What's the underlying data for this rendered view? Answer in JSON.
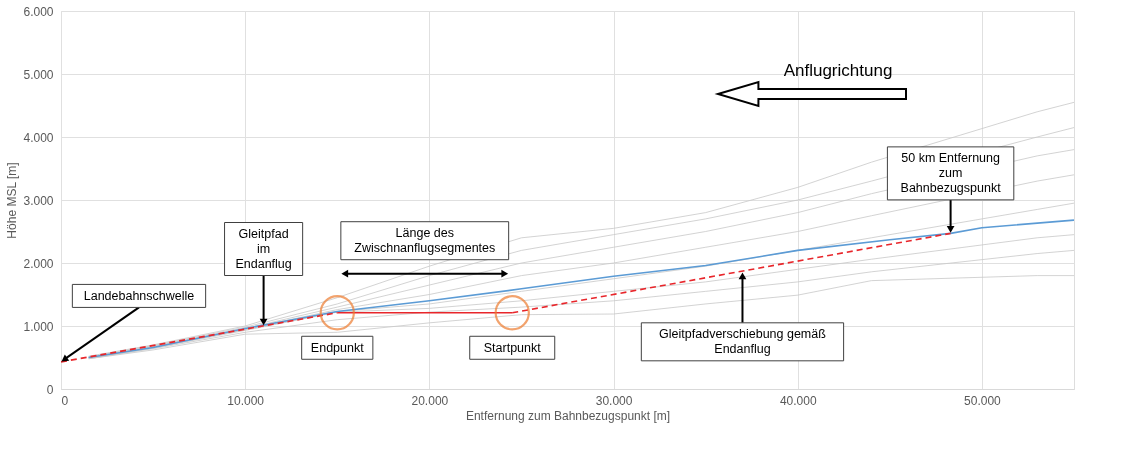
{
  "chart_data": {
    "type": "line",
    "xlabel": "Entfernung zum Bahnbezugspunkt [m]",
    "ylabel": "Höhe MSL [m]",
    "xlim": [
      0,
      55000
    ],
    "ylim": [
      0,
      6000
    ],
    "xticks": [
      0,
      {
        "value": 10000,
        "label": "10.000"
      },
      {
        "value": 20000,
        "label": "20.000"
      },
      {
        "value": 30000,
        "label": "30.000"
      },
      {
        "value": 40000,
        "label": "40.000"
      },
      {
        "value": 50000,
        "label": "50.000"
      }
    ],
    "yticks": [
      0,
      {
        "value": 1000,
        "label": "1.000"
      },
      {
        "value": 2000,
        "label": "2.000"
      },
      {
        "value": 3000,
        "label": "3.000"
      },
      {
        "value": 4000,
        "label": "4.000"
      },
      {
        "value": 5000,
        "label": "5.000"
      },
      {
        "value": 6000,
        "label": "6.000"
      }
    ],
    "grid": true,
    "series": [
      {
        "color": "#c8c8c8",
        "x": [
          1500,
          5000,
          10000,
          15000,
          20000,
          25000,
          30000,
          35000,
          40000,
          44000,
          53000,
          55000
        ],
        "values": [
          520,
          700,
          1000,
          1450,
          1950,
          2400,
          2550,
          2800,
          3200,
          3600,
          4400,
          4550
        ]
      },
      {
        "color": "#c8c8c8",
        "x": [
          1500,
          5000,
          10000,
          15000,
          20000,
          25000,
          30000,
          35000,
          40000,
          44000,
          53000,
          55000
        ],
        "values": [
          510,
          690,
          980,
          1350,
          1800,
          2200,
          2450,
          2700,
          3000,
          3300,
          4000,
          4150
        ]
      },
      {
        "color": "#c8c8c8",
        "x": [
          1500,
          5000,
          10000,
          15000,
          20000,
          25000,
          30000,
          35000,
          40000,
          44000,
          53000,
          55000
        ],
        "values": [
          500,
          680,
          960,
          1300,
          1650,
          2000,
          2250,
          2500,
          2800,
          3100,
          3700,
          3800
        ]
      },
      {
        "color": "#c8c8c8",
        "x": [
          1500,
          5000,
          10000,
          15000,
          20000,
          25000,
          30000,
          35000,
          40000,
          44000,
          53000,
          55000
        ],
        "values": [
          500,
          670,
          950,
          1260,
          1500,
          1800,
          2000,
          2250,
          2500,
          2750,
          3300,
          3400
        ]
      },
      {
        "color": "#c8c8c8",
        "x": [
          1500,
          5000,
          10000,
          15000,
          20000,
          25000,
          30000,
          35000,
          40000,
          44000,
          53000,
          55000
        ],
        "values": [
          500,
          660,
          940,
          1230,
          1350,
          1550,
          1750,
          1950,
          2200,
          2400,
          2850,
          2950
        ]
      },
      {
        "color": "#c8c8c8",
        "x": [
          1500,
          5000,
          10000,
          15000,
          20000,
          25000,
          30000,
          35000,
          40000,
          44000,
          53000,
          55000
        ],
        "values": [
          490,
          650,
          930,
          1220,
          1280,
          1400,
          1550,
          1700,
          1900,
          2060,
          2400,
          2450
        ]
      },
      {
        "color": "#c8c8c8",
        "x": [
          1500,
          5000,
          10000,
          15000,
          20000,
          25000,
          30000,
          35000,
          40000,
          44000,
          53000,
          55000
        ],
        "values": [
          480,
          640,
          900,
          1100,
          1220,
          1300,
          1400,
          1550,
          1700,
          1860,
          2150,
          2200
        ]
      },
      {
        "color": "#c8c8c8",
        "x": [
          1500,
          5000,
          10000,
          15000,
          20000,
          25000,
          30000,
          35000,
          40000,
          44000,
          53000,
          55000
        ],
        "values": [
          480,
          620,
          870,
          900,
          1050,
          1180,
          1190,
          1350,
          1490,
          1720,
          1800,
          1800
        ]
      },
      {
        "color": "#5b9bd5",
        "x": [
          1500,
          5000,
          10000,
          15000,
          20000,
          25000,
          30000,
          35000,
          40000,
          45000,
          48300,
          50000,
          55000
        ],
        "values": [
          500,
          660,
          960,
          1230,
          1400,
          1590,
          1790,
          1960,
          2200,
          2370,
          2470,
          2560,
          2680
        ]
      },
      {
        "color": "#e8262b",
        "line_style": "dashed",
        "x": [
          0,
          15000
        ],
        "values": [
          430,
          1210
        ]
      },
      {
        "color": "#e8262b",
        "x": [
          15000,
          24500
        ],
        "values": [
          1210,
          1210
        ]
      },
      {
        "color": "#e8262b",
        "line_style": "dashed",
        "x": [
          24500,
          48300
        ],
        "values": [
          1210,
          2470
        ]
      },
      {
        "type": "scatter",
        "marker": "circle",
        "color": "#ed7d31",
        "x": [
          15000,
          24500
        ],
        "values": [
          1210,
          1210
        ]
      }
    ],
    "annotations": [
      {
        "text": "Landebahnschwelle",
        "x": 0,
        "y": 430
      },
      {
        "text": "Gleitpfad\nim\nEndanflug",
        "x": 11000,
        "y": 1000
      },
      {
        "text": "Länge des\nZwischnanflugsegmentes",
        "x": 19750,
        "y": 1830
      },
      {
        "text": "Endpunkt",
        "x": 15000,
        "y": 1210
      },
      {
        "text": "Startpunkt",
        "x": 24500,
        "y": 1210
      },
      {
        "text": "Gleitpfadverschiebung gemäß\nEndanflug",
        "x": 37000,
        "y": 1860
      },
      {
        "text": "50 km Entfernung\nzum\nBahnbezugspunkt",
        "x": 48300,
        "y": 2470
      },
      "Anflugrichtung"
    ]
  }
}
